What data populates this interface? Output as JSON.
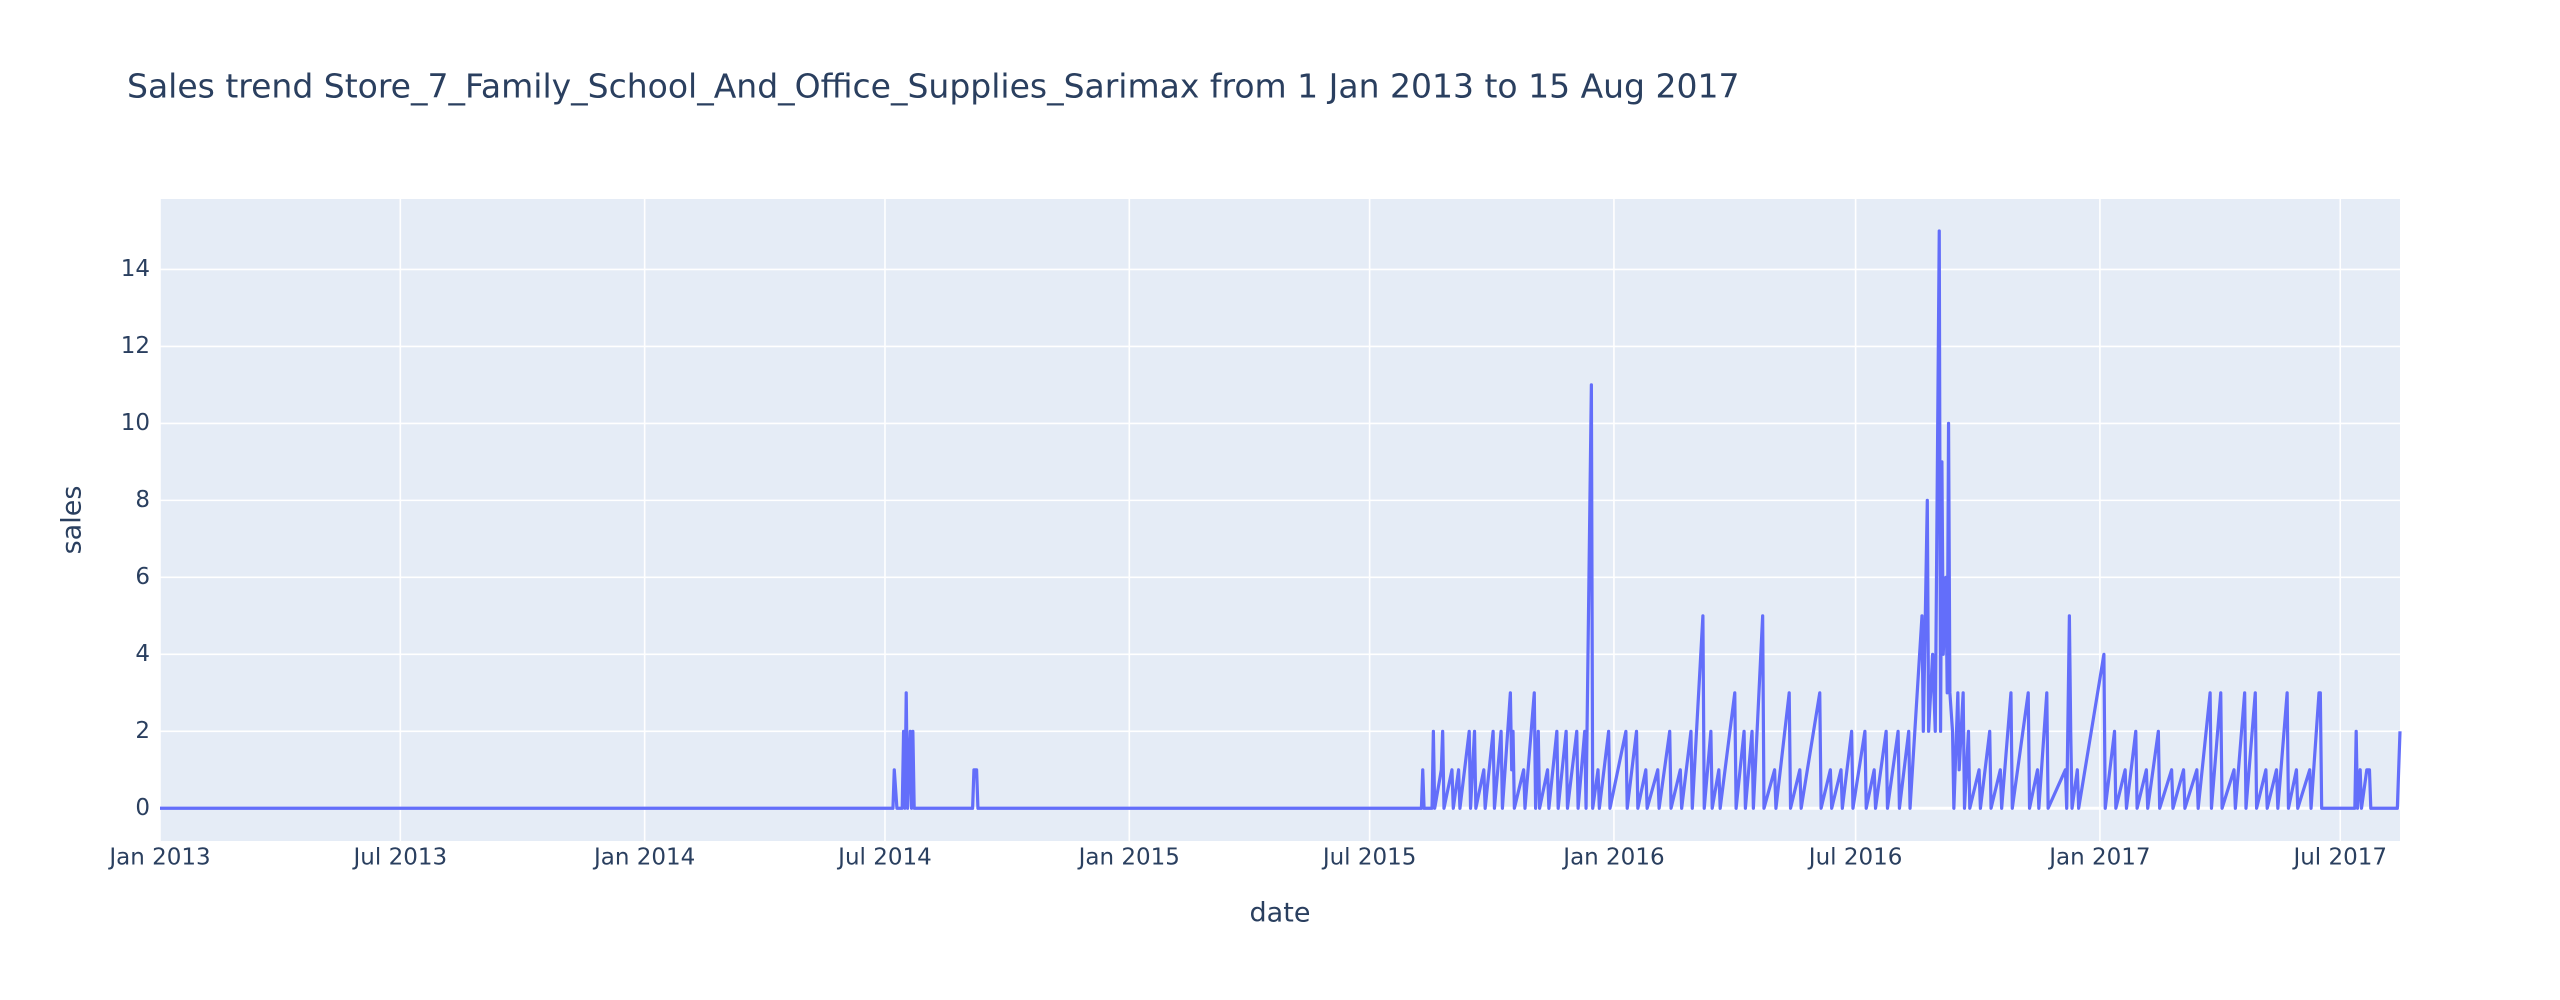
{
  "chart_data": {
    "type": "line",
    "title": "Sales trend Store_7_Family_School_And_Office_Supplies_Sarimax from  1 Jan 2013 to 15 Aug 2017",
    "xlabel": "date",
    "ylabel": "sales",
    "x": [
      "2013-01-01",
      "2014-07-07",
      "2014-07-08",
      "2014-07-10",
      "2014-07-14",
      "2014-07-15",
      "2014-07-16",
      "2014-07-17",
      "2014-07-18",
      "2014-07-19",
      "2014-07-20",
      "2014-07-21",
      "2014-07-22",
      "2014-07-23",
      "2014-09-05",
      "2014-09-06",
      "2014-09-08",
      "2014-09-09",
      "2015-08-09",
      "2015-08-10",
      "2015-08-11",
      "2015-08-17",
      "2015-08-18",
      "2015-08-19",
      "2015-08-24",
      "2015-08-25",
      "2015-08-26",
      "2015-09-01",
      "2015-09-02",
      "2015-09-06",
      "2015-09-07",
      "2015-09-14",
      "2015-09-15",
      "2015-09-18",
      "2015-09-19",
      "2015-09-25",
      "2015-09-26",
      "2015-10-02",
      "2015-10-03",
      "2015-10-08",
      "2015-10-09",
      "2015-10-15",
      "2015-10-16",
      "2015-10-17",
      "2015-10-18",
      "2015-10-25",
      "2015-10-26",
      "2015-11-02",
      "2015-11-03",
      "2015-11-05",
      "2015-11-06",
      "2015-11-12",
      "2015-11-13",
      "2015-11-19",
      "2015-11-20",
      "2015-11-26",
      "2015-11-27",
      "2015-12-04",
      "2015-12-05",
      "2015-12-10",
      "2015-12-11",
      "2015-12-15",
      "2015-12-16",
      "2015-12-20",
      "2015-12-21",
      "2015-12-28",
      "2015-12-29",
      "2016-01-10",
      "2016-01-11",
      "2016-01-18",
      "2016-01-19",
      "2016-01-25",
      "2016-01-26",
      "2016-02-03",
      "2016-02-04",
      "2016-02-12",
      "2016-02-13",
      "2016-02-20",
      "2016-02-21",
      "2016-02-28",
      "2016-02-29",
      "2016-03-08",
      "2016-03-09",
      "2016-03-14",
      "2016-03-15",
      "2016-03-20",
      "2016-03-21",
      "2016-04-01",
      "2016-04-02",
      "2016-04-08",
      "2016-04-09",
      "2016-04-14",
      "2016-04-15",
      "2016-04-22",
      "2016-04-23",
      "2016-05-01",
      "2016-05-02",
      "2016-05-12",
      "2016-05-13",
      "2016-05-20",
      "2016-05-21",
      "2016-06-04",
      "2016-06-05",
      "2016-06-12",
      "2016-06-13",
      "2016-06-20",
      "2016-06-21",
      "2016-06-28",
      "2016-06-29",
      "2016-07-08",
      "2016-07-09",
      "2016-07-15",
      "2016-07-16",
      "2016-07-24",
      "2016-07-25",
      "2016-08-02",
      "2016-08-03",
      "2016-08-10",
      "2016-08-11",
      "2016-08-20",
      "2016-08-21",
      "2016-08-24",
      "2016-08-25",
      "2016-08-28",
      "2016-08-30",
      "2016-09-02",
      "2016-09-03",
      "2016-09-04",
      "2016-09-05",
      "2016-09-07",
      "2016-09-08",
      "2016-09-09",
      "2016-09-10",
      "2016-09-12",
      "2016-09-13",
      "2016-09-16",
      "2016-09-17",
      "2016-09-20",
      "2016-09-21",
      "2016-09-24",
      "2016-09-25",
      "2016-10-02",
      "2016-10-03",
      "2016-10-10",
      "2016-10-11",
      "2016-10-18",
      "2016-10-19",
      "2016-10-26",
      "2016-10-27",
      "2016-11-08",
      "2016-11-09",
      "2016-11-15",
      "2016-11-16",
      "2016-11-22",
      "2016-11-23",
      "2016-12-06",
      "2016-12-07",
      "2016-12-09",
      "2016-12-10",
      "2016-12-11",
      "2016-12-15",
      "2016-12-16",
      "2017-01-04",
      "2017-01-05",
      "2017-01-12",
      "2017-01-13",
      "2017-01-20",
      "2017-01-21",
      "2017-01-28",
      "2017-01-29",
      "2017-02-05",
      "2017-02-06",
      "2017-02-14",
      "2017-02-15",
      "2017-02-24",
      "2017-02-25",
      "2017-03-05",
      "2017-03-06",
      "2017-03-15",
      "2017-03-16",
      "2017-03-25",
      "2017-03-26",
      "2017-04-02",
      "2017-04-03",
      "2017-04-12",
      "2017-04-13",
      "2017-04-20",
      "2017-04-21",
      "2017-04-28",
      "2017-04-29",
      "2017-05-06",
      "2017-05-07",
      "2017-05-14",
      "2017-05-15",
      "2017-05-22",
      "2017-05-23",
      "2017-05-29",
      "2017-05-30",
      "2017-06-08",
      "2017-06-09",
      "2017-06-15",
      "2017-06-16",
      "2017-06-17",
      "2017-07-12",
      "2017-07-13",
      "2017-07-14",
      "2017-07-16",
      "2017-07-17",
      "2017-07-21",
      "2017-07-23",
      "2017-07-24",
      "2017-08-13",
      "2017-08-15"
    ],
    "series": [
      {
        "name": "sales",
        "color": "#636efa",
        "values": [
          0,
          0,
          1,
          0,
          0,
          2,
          0,
          3,
          0,
          1,
          2,
          0,
          2,
          0,
          0,
          1,
          1,
          0,
          0,
          1,
          0,
          0,
          2,
          0,
          1,
          2,
          0,
          1,
          0,
          1,
          0,
          2,
          0,
          2,
          0,
          1,
          0,
          2,
          0,
          2,
          0,
          3,
          1,
          2,
          0,
          1,
          0,
          3,
          0,
          2,
          0,
          1,
          0,
          2,
          0,
          2,
          0,
          2,
          0,
          2,
          0,
          11,
          0,
          1,
          0,
          2,
          0,
          2,
          0,
          2,
          0,
          1,
          0,
          1,
          0,
          2,
          0,
          1,
          0,
          2,
          0,
          5,
          0,
          2,
          0,
          1,
          0,
          3,
          0,
          2,
          0,
          2,
          0,
          5,
          0,
          1,
          0,
          3,
          0,
          1,
          0,
          3,
          0,
          1,
          0,
          1,
          0,
          2,
          0,
          2,
          0,
          1,
          0,
          2,
          0,
          2,
          0,
          2,
          0,
          5,
          2,
          8,
          2,
          4,
          2,
          15,
          2,
          9,
          4,
          6,
          3,
          10,
          3,
          2,
          0,
          3,
          1,
          3,
          0,
          2,
          0,
          1,
          0,
          2,
          0,
          1,
          0,
          3,
          0,
          3,
          0,
          1,
          0,
          3,
          0,
          1,
          0,
          5,
          2,
          0,
          1,
          0,
          4,
          0,
          2,
          0,
          1,
          0,
          2,
          0,
          1,
          0,
          2,
          0,
          1,
          0,
          1,
          0,
          1,
          0,
          3,
          0,
          3,
          0,
          1,
          0,
          3,
          0,
          3,
          0,
          1,
          0,
          1,
          0,
          3,
          0,
          1,
          0,
          1,
          0,
          3,
          3,
          0,
          0,
          2,
          0,
          1,
          0,
          1,
          1,
          0,
          0,
          2
        ]
      }
    ],
    "xlim": [
      "2013-01-01",
      "2017-08-15"
    ],
    "xticks": [
      {
        "value": "2013-01-01",
        "label": "Jan 2013"
      },
      {
        "value": "2013-07-01",
        "label": "Jul 2013"
      },
      {
        "value": "2014-01-01",
        "label": "Jan 2014"
      },
      {
        "value": "2014-07-01",
        "label": "Jul 2014"
      },
      {
        "value": "2015-01-01",
        "label": "Jan 2015"
      },
      {
        "value": "2015-07-01",
        "label": "Jul 2015"
      },
      {
        "value": "2016-01-01",
        "label": "Jan 2016"
      },
      {
        "value": "2016-07-01",
        "label": "Jul 2016"
      },
      {
        "value": "2017-01-01",
        "label": "Jan 2017"
      },
      {
        "value": "2017-07-01",
        "label": "Jul 2017"
      }
    ],
    "ylim": [
      -0.85,
      15.83
    ],
    "yticks": [
      0,
      2,
      4,
      6,
      8,
      10,
      12,
      14
    ],
    "grid": true
  }
}
